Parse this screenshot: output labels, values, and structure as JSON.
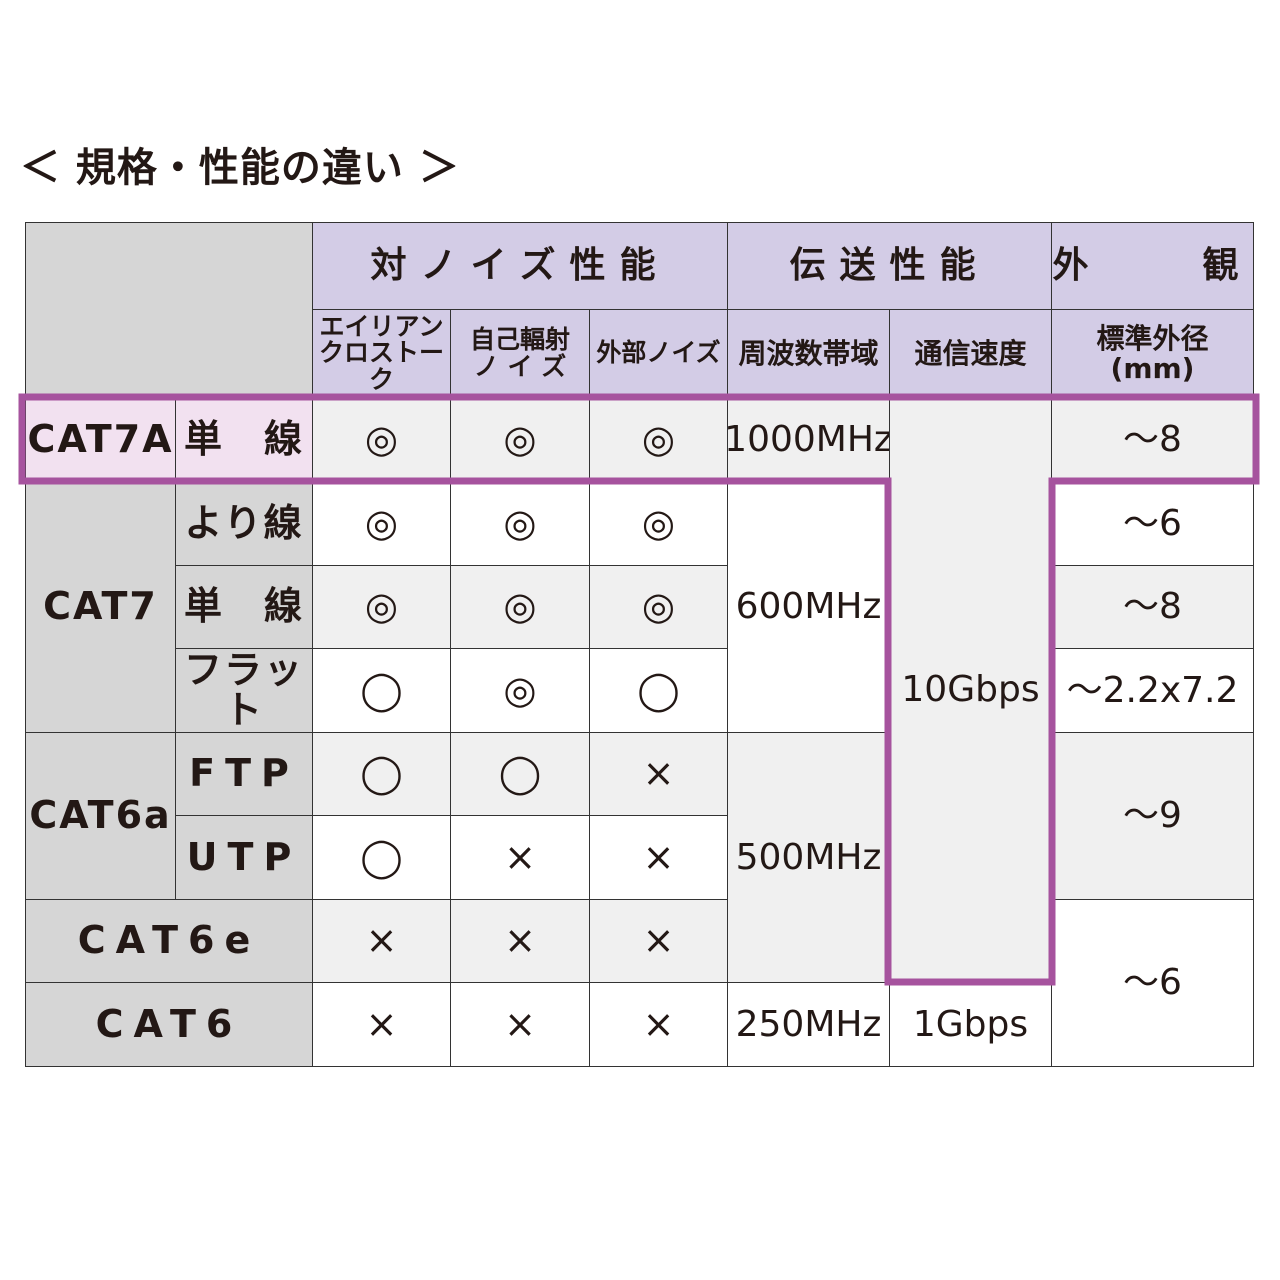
{
  "title": "＜ 規格・性能の違い ＞",
  "colors": {
    "header": "#d3cce6",
    "category": "#d6d6d6",
    "cell_shaded": "#f0f0f0",
    "cell_plain": "#ffffff",
    "highlight": "#a6539e",
    "highlight_fill": "#f2e1f0"
  },
  "headers": {
    "noise": "対ノイズ性能",
    "transmission": "伝送性能",
    "appearance": "外　　観",
    "alien_crosstalk": "エイリアン\nクロストーク",
    "self_radiation": "自己輻射\nノ イ ズ",
    "external_noise": "外部ノイズ",
    "frequency": "周波数帯域",
    "speed": "通信速度",
    "diameter": "標準外径\n(mm)"
  },
  "categories": {
    "cat7a": "CAT7A",
    "cat7": "CAT7",
    "cat6a": "CAT6a",
    "cat6e": "CAT6e",
    "cat6": "CAT6"
  },
  "rows": [
    {
      "type": "単　線",
      "alien": "◎",
      "self": "◎",
      "external": "◎"
    },
    {
      "type": "より線",
      "alien": "◎",
      "self": "◎",
      "external": "◎"
    },
    {
      "type": "単　線",
      "alien": "◎",
      "self": "◎",
      "external": "◎"
    },
    {
      "type": "フラット",
      "alien": "◯",
      "self": "◎",
      "external": "◯"
    },
    {
      "type": "FTP",
      "alien": "◯",
      "self": "◯",
      "external": "×"
    },
    {
      "type": "UTP",
      "alien": "◯",
      "self": "×",
      "external": "×"
    },
    {
      "alien": "×",
      "self": "×",
      "external": "×"
    },
    {
      "alien": "×",
      "self": "×",
      "external": "×"
    }
  ],
  "frequency": [
    "1000MHz",
    "600MHz",
    "500MHz",
    "250MHz"
  ],
  "speed": [
    "10Gbps",
    "1Gbps"
  ],
  "diameter": [
    "～8",
    "～6",
    "～8",
    "～2.2x7.2",
    "～9",
    "～6"
  ]
}
